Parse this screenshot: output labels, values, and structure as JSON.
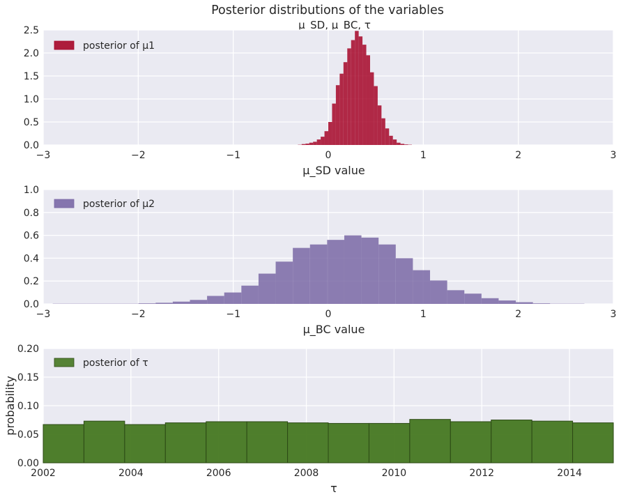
{
  "figure": {
    "title": "Posterior distributions of the variables",
    "subtitle": "μ_SD,   μ_BC,   τ"
  },
  "chart_data": [
    {
      "type": "bar",
      "name": "mu_sd_histogram",
      "xlabel": "μ_SD value",
      "ylabel": "",
      "xlim": [
        -3,
        3
      ],
      "ylim": [
        0,
        2.5
      ],
      "xticks": [
        -3,
        -2,
        -1,
        0,
        1,
        2,
        3
      ],
      "yticks": [
        0.0,
        0.5,
        1.0,
        1.5,
        2.0,
        2.5
      ],
      "xtick_labels": [
        "−3",
        "−2",
        "−1",
        "0",
        "1",
        "2",
        "3"
      ],
      "ytick_labels": [
        "0.0",
        "0.5",
        "1.0",
        "1.5",
        "2.0",
        "2.5"
      ],
      "legend": "top-left",
      "grid": true,
      "series": [
        {
          "name": "posterior of μ1",
          "color": "#A60628",
          "bin_start": -0.32,
          "bin_width": 0.04,
          "values": [
            0.005,
            0.02,
            0.03,
            0.05,
            0.07,
            0.12,
            0.18,
            0.3,
            0.5,
            0.9,
            1.3,
            1.55,
            1.8,
            2.1,
            2.28,
            2.48,
            2.36,
            2.18,
            1.95,
            1.58,
            1.28,
            0.86,
            0.58,
            0.36,
            0.2,
            0.12,
            0.05,
            0.025,
            0.012,
            0.006
          ]
        }
      ]
    },
    {
      "type": "bar",
      "name": "mu_bc_histogram",
      "xlabel": "μ_BC value",
      "ylabel": "",
      "xlim": [
        -3,
        3
      ],
      "ylim": [
        0,
        1.0
      ],
      "xticks": [
        -3,
        -2,
        -1,
        0,
        1,
        2,
        3
      ],
      "yticks": [
        0.0,
        0.2,
        0.4,
        0.6,
        0.8,
        1.0
      ],
      "xtick_labels": [
        "−3",
        "−2",
        "−1",
        "0",
        "1",
        "2",
        "3"
      ],
      "ytick_labels": [
        "0.0",
        "0.2",
        "0.4",
        "0.6",
        "0.8",
        "1.0"
      ],
      "legend": "top-left",
      "grid": true,
      "series": [
        {
          "name": "posterior of μ2",
          "color": "#7A68A6",
          "bin_start": -2.9,
          "bin_width": 0.1805,
          "values": [
            0.002,
            0.002,
            0.002,
            0.002,
            0.002,
            0.005,
            0.01,
            0.02,
            0.035,
            0.07,
            0.1,
            0.16,
            0.265,
            0.37,
            0.49,
            0.52,
            0.56,
            0.6,
            0.58,
            0.52,
            0.4,
            0.295,
            0.205,
            0.12,
            0.09,
            0.05,
            0.03,
            0.015,
            0.005,
            0.002,
            0.002
          ]
        }
      ]
    },
    {
      "type": "bar",
      "name": "tau_histogram",
      "xlabel": "τ",
      "ylabel": "probability",
      "xlim": [
        2002,
        2015
      ],
      "ylim": [
        0,
        0.2
      ],
      "xticks": [
        2002,
        2004,
        2006,
        2008,
        2010,
        2012,
        2014
      ],
      "yticks": [
        0.0,
        0.05,
        0.1,
        0.15,
        0.2
      ],
      "xtick_labels": [
        "2002",
        "2004",
        "2006",
        "2008",
        "2010",
        "2012",
        "2014"
      ],
      "ytick_labels": [
        "0.00",
        "0.05",
        "0.10",
        "0.15",
        "0.20"
      ],
      "legend": "top-left",
      "grid": true,
      "series": [
        {
          "name": "posterior of τ",
          "color": "#467821",
          "bin_start": 2002,
          "bin_width": 0.9286,
          "values": [
            0.067,
            0.073,
            0.067,
            0.07,
            0.072,
            0.072,
            0.07,
            0.069,
            0.069,
            0.076,
            0.072,
            0.075,
            0.073,
            0.07
          ]
        }
      ]
    }
  ]
}
